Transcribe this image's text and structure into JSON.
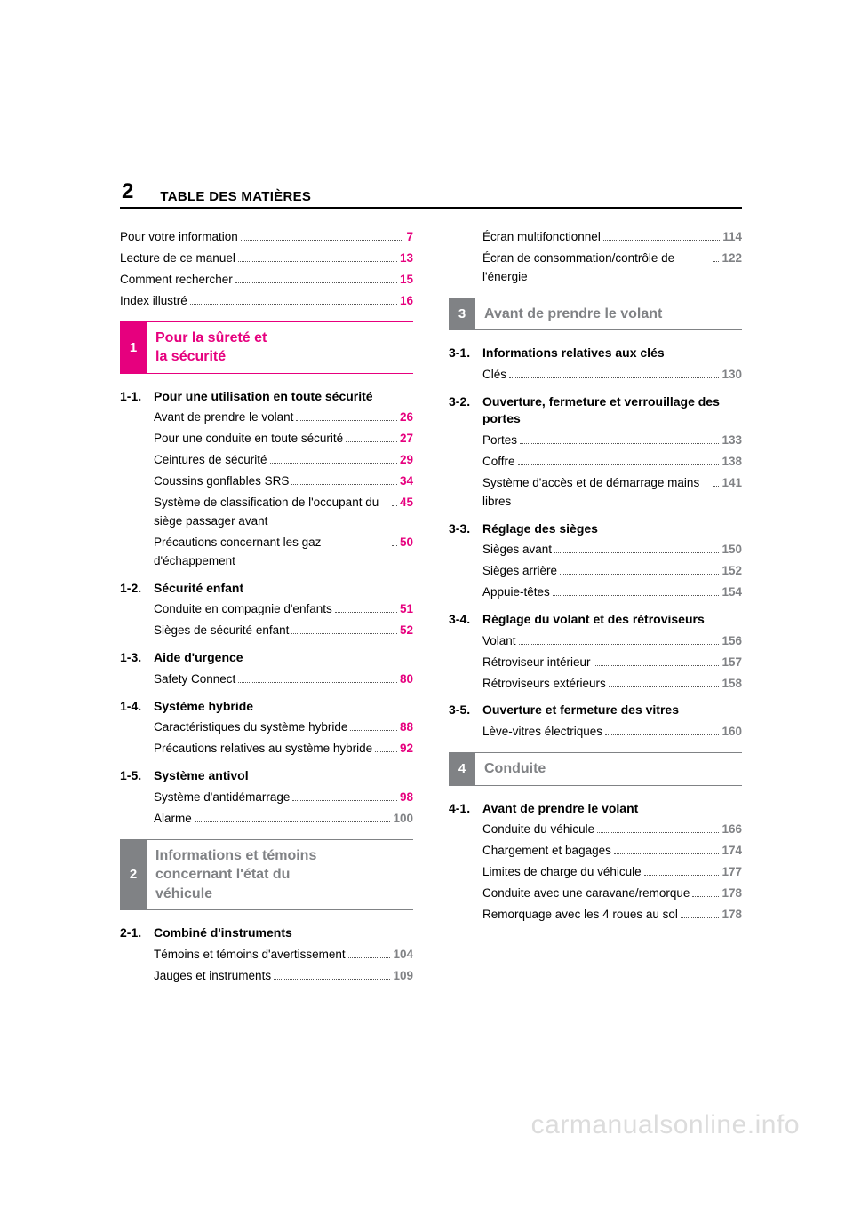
{
  "meta": {
    "page_number": "2",
    "header_title": "TABLE DES MATIÈRES",
    "watermark": "carmanualsonline.info"
  },
  "colors": {
    "pink": "#e6007e",
    "gray": "#808285",
    "text": "#000000",
    "watermark": "#dcdcdc",
    "background": "#ffffff"
  },
  "intro_lines": [
    {
      "text": "Pour votre information",
      "page": "7",
      "color": "pink"
    },
    {
      "text": "Lecture de ce manuel",
      "page": "13",
      "color": "pink"
    },
    {
      "text": "Comment rechercher",
      "page": "15",
      "color": "pink"
    },
    {
      "text": "Index illustré",
      "page": "16",
      "color": "pink"
    }
  ],
  "section1": {
    "number": "1",
    "title_line1": "Pour la sûreté et",
    "title_line2": "la sécurité"
  },
  "s1_1": {
    "num": "1-1.",
    "title": "Pour une utilisation en toute sécurité",
    "items": [
      {
        "text": "Avant de prendre le volant",
        "page": "26"
      },
      {
        "text": "Pour une conduite en toute sécurité",
        "page": "27"
      },
      {
        "text": "Ceintures de sécurité",
        "page": "29"
      },
      {
        "text": "Coussins gonflables SRS",
        "page": "34"
      },
      {
        "text": "Système de classification de l'occupant du siège passager avant",
        "page": "45"
      },
      {
        "text": "Précautions concernant les gaz d'échappement",
        "page": "50"
      }
    ]
  },
  "s1_2": {
    "num": "1-2.",
    "title": "Sécurité enfant",
    "items": [
      {
        "text": "Conduite en compagnie d'enfants",
        "page": "51"
      },
      {
        "text": "Sièges de sécurité enfant",
        "page": "52"
      }
    ]
  },
  "s1_3": {
    "num": "1-3.",
    "title": "Aide d'urgence",
    "items": [
      {
        "text": "Safety Connect",
        "page": "80"
      }
    ]
  },
  "s1_4": {
    "num": "1-4.",
    "title": "Système hybride",
    "items": [
      {
        "text": "Caractéristiques du système hybride",
        "page": "88"
      },
      {
        "text": "Précautions relatives au système hybride",
        "page": "92"
      }
    ]
  },
  "s1_5": {
    "num": "1-5.",
    "title": "Système antivol",
    "items": [
      {
        "text": "Système d'antidémarrage",
        "page": "98"
      },
      {
        "text": "Alarme",
        "page": "100",
        "color": "gray"
      }
    ]
  },
  "section2": {
    "number": "2",
    "title_line1": "Informations et témoins",
    "title_line2": "concernant l'état du",
    "title_line3": "véhicule"
  },
  "s2_1": {
    "num": "2-1.",
    "title": "Combiné d'instruments",
    "items": [
      {
        "text": "Témoins et témoins d'avertissement",
        "page": "104",
        "color": "gray"
      },
      {
        "text": "Jauges et instruments",
        "page": "109",
        "color": "gray"
      }
    ]
  },
  "s2_1_cont": [
    {
      "text": "Écran multifonctionnel",
      "page": "114",
      "color": "gray"
    },
    {
      "text": "Écran de consommation/contrôle de l'énergie",
      "page": "122",
      "color": "gray"
    }
  ],
  "section3": {
    "number": "3",
    "title": "Avant de prendre le volant"
  },
  "s3_1": {
    "num": "3-1.",
    "title": "Informations relatives aux clés",
    "items": [
      {
        "text": "Clés",
        "page": "130",
        "color": "gray"
      }
    ]
  },
  "s3_2": {
    "num": "3-2.",
    "title": "Ouverture, fermeture et verrouillage des portes",
    "items": [
      {
        "text": "Portes",
        "page": "133",
        "color": "gray"
      },
      {
        "text": "Coffre",
        "page": "138",
        "color": "gray"
      },
      {
        "text": "Système d'accès et de démarrage mains libres",
        "page": "141",
        "color": "gray"
      }
    ]
  },
  "s3_3": {
    "num": "3-3.",
    "title": "Réglage des sièges",
    "items": [
      {
        "text": "Sièges avant",
        "page": "150",
        "color": "gray"
      },
      {
        "text": "Sièges arrière",
        "page": "152",
        "color": "gray"
      },
      {
        "text": "Appuie-têtes",
        "page": "154",
        "color": "gray"
      }
    ]
  },
  "s3_4": {
    "num": "3-4.",
    "title": "Réglage du volant et des rétroviseurs",
    "items": [
      {
        "text": "Volant",
        "page": "156",
        "color": "gray"
      },
      {
        "text": "Rétroviseur intérieur",
        "page": "157",
        "color": "gray"
      },
      {
        "text": "Rétroviseurs extérieurs",
        "page": "158",
        "color": "gray"
      }
    ]
  },
  "s3_5": {
    "num": "3-5.",
    "title": "Ouverture et fermeture des vitres",
    "items": [
      {
        "text": "Lève-vitres électriques",
        "page": "160",
        "color": "gray"
      }
    ]
  },
  "section4": {
    "number": "4",
    "title": "Conduite"
  },
  "s4_1": {
    "num": "4-1.",
    "title": "Avant de prendre le volant",
    "items": [
      {
        "text": "Conduite du véhicule",
        "page": "166",
        "color": "gray"
      },
      {
        "text": "Chargement et bagages",
        "page": "174",
        "color": "gray"
      },
      {
        "text": "Limites de charge du véhicule",
        "page": "177",
        "color": "gray"
      },
      {
        "text": "Conduite avec une caravane/remorque",
        "page": "178",
        "color": "gray"
      },
      {
        "text": "Remorquage avec les 4 roues au sol",
        "page": "178",
        "color": "gray"
      }
    ]
  }
}
